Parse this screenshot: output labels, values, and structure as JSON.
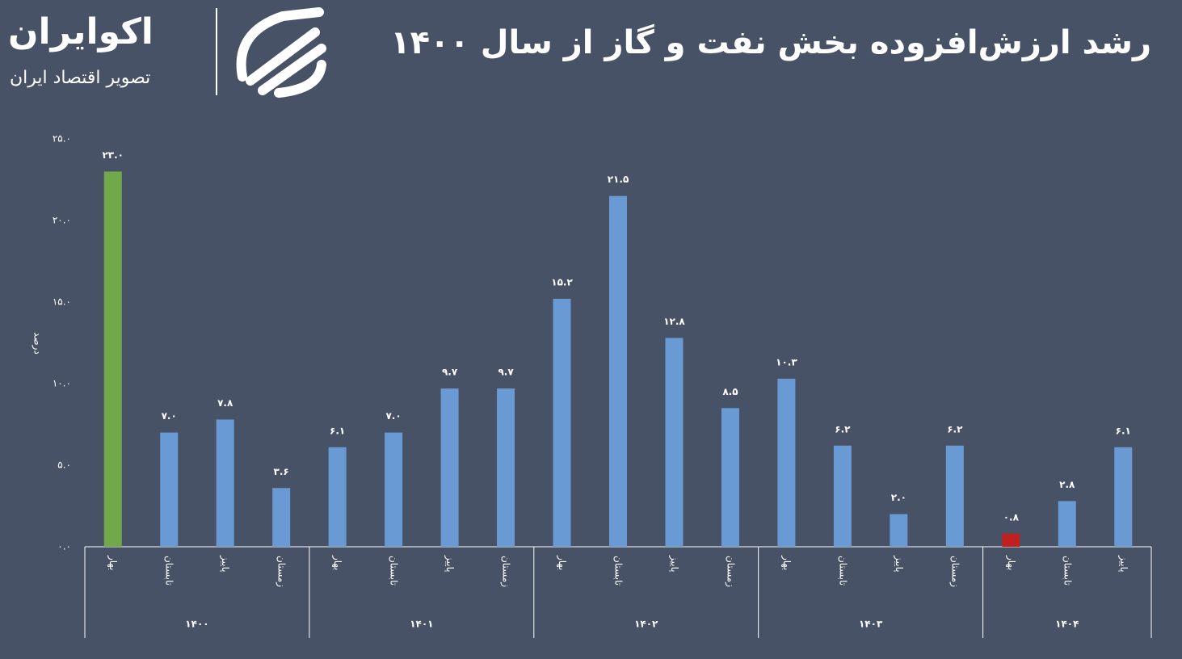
{
  "header": {
    "logo_name": "اکوایران",
    "logo_tagline": "تصویر اقتصاد ایران"
  },
  "chart_data": {
    "type": "bar",
    "title": "رشد ارزش‌افزوده بخش نفت و گاز از سال ۱۴۰۰",
    "y_label": "درصد",
    "groups": [
      {
        "name": "۱۴۰۰",
        "categories": [
          "بهار",
          "تابستان",
          "پاییز",
          "زمستان"
        ]
      },
      {
        "name": "۱۴۰۱",
        "categories": [
          "بهار",
          "تابستان",
          "پاییز",
          "زمستان"
        ]
      },
      {
        "name": "۱۴۰۲",
        "categories": [
          "بهار",
          "تابستان",
          "پاییز",
          "زمستان"
        ]
      },
      {
        "name": "۱۴۰۳",
        "categories": [
          "بهار",
          "تابستان",
          "پاییز",
          "زمستان"
        ]
      },
      {
        "name": "۱۴۰۴",
        "categories": [
          "بهار",
          "تابستان",
          "پاییز"
        ]
      }
    ],
    "values": [
      23.0,
      7.0,
      7.8,
      3.6,
      6.1,
      7.0,
      9.7,
      9.7,
      15.2,
      21.5,
      12.8,
      8.5,
      10.3,
      6.2,
      2.0,
      6.2,
      0.8,
      2.8,
      6.1
    ],
    "value_labels": [
      "۲۳.۰",
      "۷.۰",
      "۷.۸",
      "۳.۶",
      "۶.۱",
      "۷.۰",
      "۹.۷",
      "۹.۷",
      "۱۵.۲",
      "۲۱.۵",
      "۱۲.۸",
      "۸.۵",
      "۱۰.۳",
      "۶.۲",
      "۲.۰",
      "۶.۲",
      "۰.۸",
      "۲.۸",
      "۶.۱"
    ],
    "colors": [
      "#70a84a",
      "#6a9ad4",
      "#6a9ad4",
      "#6a9ad4",
      "#6a9ad4",
      "#6a9ad4",
      "#6a9ad4",
      "#6a9ad4",
      "#6a9ad4",
      "#6a9ad4",
      "#6a9ad4",
      "#6a9ad4",
      "#6a9ad4",
      "#6a9ad4",
      "#6a9ad4",
      "#6a9ad4",
      "#c0201f",
      "#6a9ad4",
      "#6a9ad4"
    ],
    "ylim": [
      0,
      25
    ],
    "yticks": [
      {
        "value": 0,
        "label": "۰.۰"
      },
      {
        "value": 5,
        "label": "۵.۰"
      },
      {
        "value": 10,
        "label": "۱۰.۰"
      },
      {
        "value": 15,
        "label": "۱۵.۰"
      },
      {
        "value": 20,
        "label": "۲۰.۰"
      },
      {
        "value": 25,
        "label": "۲۵.۰"
      }
    ],
    "grid": false
  }
}
